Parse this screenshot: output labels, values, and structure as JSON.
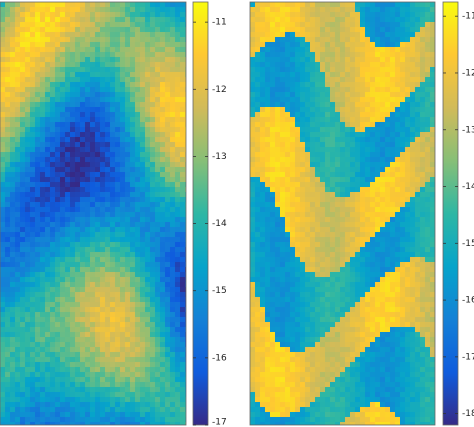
{
  "chart_data": [
    {
      "type": "heatmap",
      "colormap": [
        "#352a87",
        "#0f5cdd",
        "#1481d6",
        "#06a4ca",
        "#2eb7a4",
        "#87bf77",
        "#d1bb59",
        "#fec832",
        "#f9fb0e"
      ],
      "ylim": [
        -17,
        -10.7
      ],
      "yticks": [
        -11,
        -12,
        -13,
        -14,
        -15,
        -16,
        -17
      ]
    },
    {
      "type": "heatmap",
      "colormap": [
        "#352a87",
        "#0f5cdd",
        "#1481d6",
        "#06a4ca",
        "#2eb7a4",
        "#87bf77",
        "#d1bb59",
        "#fec832",
        "#f9fb0e"
      ],
      "ylim": [
        -18.2,
        -10.75
      ],
      "yticks": [
        -11,
        -12,
        -13,
        -14,
        -15,
        -16,
        -17,
        -18
      ]
    }
  ]
}
